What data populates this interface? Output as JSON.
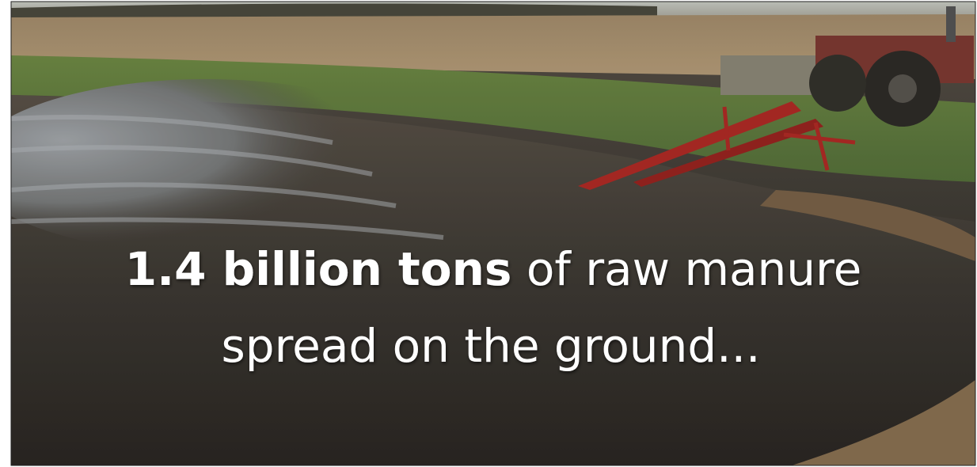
{
  "caption": {
    "bold": "1.4 billion tons",
    "rest": "of raw manure",
    "line2": "spread on the ground..."
  }
}
